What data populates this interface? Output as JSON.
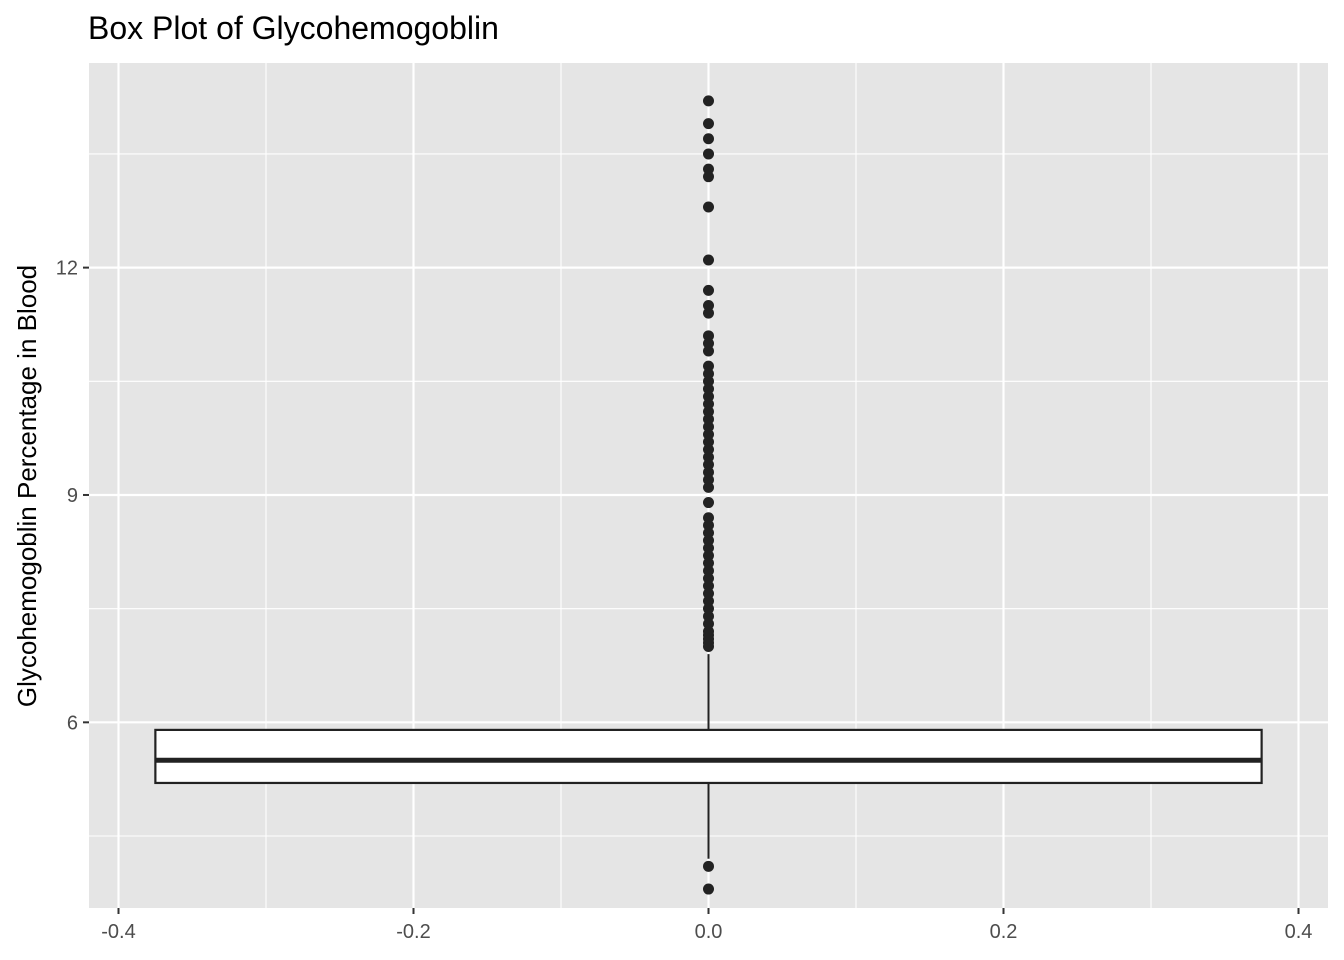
{
  "chart_data": {
    "type": "boxplot",
    "title": "Box Plot of Glycohemogoblin",
    "xlabel": "",
    "ylabel": "Glycohemogoblin Percentage in Blood",
    "xlim": [
      -0.42,
      0.42
    ],
    "ylim": [
      3.55,
      14.7
    ],
    "x_ticks": [
      -0.4,
      -0.2,
      0.0,
      0.2,
      0.4
    ],
    "x_tick_labels": [
      "-0.4",
      "-0.2",
      "0.0",
      "0.2",
      "0.4"
    ],
    "y_ticks": [
      6,
      9,
      12
    ],
    "y_tick_labels": [
      "6",
      "9",
      "12"
    ],
    "grid": true,
    "panel_background": "#e5e5e5",
    "grid_color": "#ffffff",
    "box_color": "#222222",
    "box": {
      "x": 0.0,
      "xmin": -0.375,
      "xmax": 0.375,
      "whisker_low": 4.2,
      "q1": 5.2,
      "median": 5.5,
      "q3": 5.9,
      "whisker_high": 6.9
    },
    "outliers": [
      4.1,
      3.8,
      7.0,
      7.05,
      7.1,
      7.15,
      7.2,
      7.3,
      7.4,
      7.5,
      7.6,
      7.7,
      7.8,
      7.9,
      8.0,
      8.1,
      8.2,
      8.3,
      8.4,
      8.5,
      8.6,
      8.7,
      8.9,
      9.1,
      9.2,
      9.3,
      9.4,
      9.5,
      9.6,
      9.7,
      9.8,
      9.9,
      10.0,
      10.1,
      10.2,
      10.3,
      10.4,
      10.5,
      10.6,
      10.7,
      10.9,
      11.0,
      11.1,
      11.4,
      11.5,
      11.7,
      12.1,
      12.8,
      13.2,
      13.3,
      13.5,
      13.7,
      13.9,
      14.2
    ]
  }
}
